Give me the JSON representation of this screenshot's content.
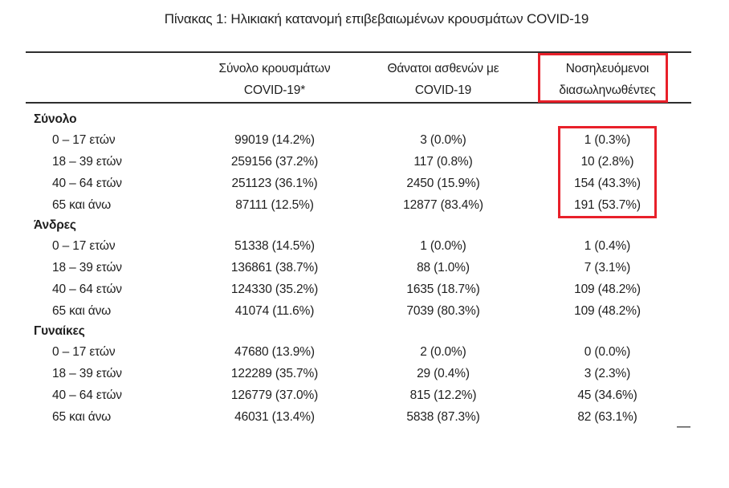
{
  "title": "Πίνακας 1: Ηλικιακή κατανομή επιβεβαιωμένων κρουσμάτων COVID-19",
  "highlight_color": "#e8202a",
  "stray_mark": "—",
  "table": {
    "columns": [
      {
        "line1": "Σύνολο κρουσμάτων",
        "line2": "COVID-19*"
      },
      {
        "line1": "Θάνατοι ασθενών με",
        "line2": "COVID-19"
      },
      {
        "line1": "Νοσηλευόμενοι",
        "line2": "διασωληνωθέντες",
        "highlighted": true
      }
    ],
    "sections": [
      {
        "label": "Σύνολο",
        "rows": [
          {
            "label": "0 – 17 ετών",
            "cases": "99019 (14.2%)",
            "deaths": "3 (0.0%)",
            "intubated": "1 (0.3%)"
          },
          {
            "label": "18 – 39 ετών",
            "cases": "259156 (37.2%)",
            "deaths": "117 (0.8%)",
            "intubated": "10 (2.8%)"
          },
          {
            "label": "40 – 64 ετών",
            "cases": "251123 (36.1%)",
            "deaths": "2450 (15.9%)",
            "intubated": "154 (43.3%)"
          },
          {
            "label": "65 και άνω",
            "cases": "87111 (12.5%)",
            "deaths": "12877 (83.4%)",
            "intubated": "191 (53.7%)"
          }
        ]
      },
      {
        "label": "Άνδρες",
        "rows": [
          {
            "label": "0 – 17 ετών",
            "cases": "51338 (14.5%)",
            "deaths": "1 (0.0%)",
            "intubated": "1 (0.4%)"
          },
          {
            "label": "18 – 39 ετών",
            "cases": "136861 (38.7%)",
            "deaths": "88 (1.0%)",
            "intubated": "7 (3.1%)"
          },
          {
            "label": "40 – 64 ετών",
            "cases": "124330 (35.2%)",
            "deaths": "1635 (18.7%)",
            "intubated": "109 (48.2%)"
          },
          {
            "label": "65 και άνω",
            "cases": "41074 (11.6%)",
            "deaths": "7039 (80.3%)",
            "intubated": "109 (48.2%)"
          }
        ]
      },
      {
        "label": "Γυναίκες",
        "rows": [
          {
            "label": "0 – 17 ετών",
            "cases": "47680 (13.9%)",
            "deaths": "2 (0.0%)",
            "intubated": "0 (0.0%)"
          },
          {
            "label": "18 – 39 ετών",
            "cases": "122289 (35.7%)",
            "deaths": "29 (0.4%)",
            "intubated": "3 (2.3%)"
          },
          {
            "label": "40 – 64 ετών",
            "cases": "126779 (37.0%)",
            "deaths": "815 (12.2%)",
            "intubated": "45 (34.6%)"
          },
          {
            "label": "65 και άνω",
            "cases": "46031 (13.4%)",
            "deaths": "5838 (87.3%)",
            "intubated": "82 (63.1%)"
          }
        ]
      }
    ]
  }
}
